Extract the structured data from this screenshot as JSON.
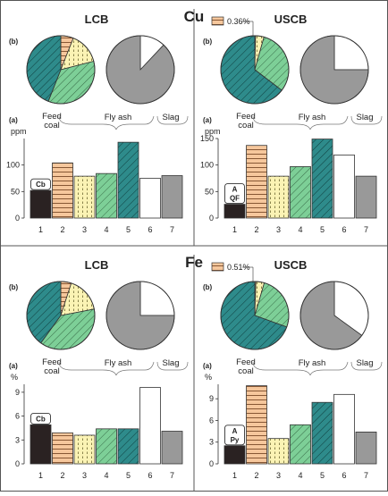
{
  "figure": {
    "panel_labels": {
      "pie": "(b)",
      "bar": "(a)"
    },
    "group_labels": {
      "feed": "Feed\ncoal",
      "fly": "Fly ash",
      "slag": "Slag"
    },
    "colors": {
      "1": "#2a2222",
      "2": "#f6c79c",
      "3": "#fbf3b4",
      "4": "#7dcf97",
      "5": "#2e8b8b",
      "6": "#ffffff",
      "7": "#999999"
    }
  },
  "chart_data": [
    {
      "id": "cu-lcb",
      "element": "Cu",
      "plant": "LCB",
      "type": "bar",
      "ylabel": "ppm",
      "ylim": [
        0,
        150
      ],
      "yticks": [
        0,
        50,
        100
      ],
      "categories": [
        "1",
        "2",
        "3",
        "4",
        "5",
        "6",
        "7"
      ],
      "values": [
        52,
        104,
        79,
        84,
        143,
        75,
        80
      ],
      "annotation": "Cb",
      "pie_fly": [
        {
          "cat": "2",
          "value": 0.06
        },
        {
          "cat": "3",
          "value": 0.15
        },
        {
          "cat": "4",
          "value": 0.35
        },
        {
          "cat": "5",
          "value": 0.44
        }
      ],
      "pie_slag": [
        {
          "cat": "6",
          "value": 0.12
        },
        {
          "cat": "7",
          "value": 0.88
        }
      ]
    },
    {
      "id": "cu-uscb",
      "element": "Cu",
      "plant": "USCB",
      "type": "bar",
      "ylabel": "ppm",
      "ylim": [
        0,
        150
      ],
      "yticks": [
        0,
        50,
        100,
        150
      ],
      "categories": [
        "1",
        "2",
        "3",
        "4",
        "5",
        "6",
        "7"
      ],
      "values": [
        26,
        137,
        79,
        97,
        149,
        119,
        79
      ],
      "annotation": "A\nQF",
      "pie_fly_legend": "0.36%",
      "pie_fly": [
        {
          "cat": "2",
          "value": 0.0036
        },
        {
          "cat": "3",
          "value": 0.04
        },
        {
          "cat": "4",
          "value": 0.31
        },
        {
          "cat": "5",
          "value": 0.6464
        }
      ],
      "pie_slag": [
        {
          "cat": "6",
          "value": 0.25
        },
        {
          "cat": "7",
          "value": 0.75
        }
      ]
    },
    {
      "id": "fe-lcb",
      "element": "Fe",
      "plant": "LCB",
      "type": "bar",
      "ylabel": "%",
      "ylim": [
        0,
        10
      ],
      "yticks": [
        0,
        3,
        6,
        9
      ],
      "categories": [
        "1",
        "2",
        "3",
        "4",
        "5",
        "6",
        "7"
      ],
      "values": [
        4.9,
        3.9,
        3.6,
        4.4,
        4.4,
        9.6,
        4.1
      ],
      "annotation": "Cb",
      "pie_fly": [
        {
          "cat": "2",
          "value": 0.05
        },
        {
          "cat": "3",
          "value": 0.17
        },
        {
          "cat": "4",
          "value": 0.38
        },
        {
          "cat": "5",
          "value": 0.4
        }
      ],
      "pie_slag": [
        {
          "cat": "6",
          "value": 0.25
        },
        {
          "cat": "7",
          "value": 0.75
        }
      ]
    },
    {
      "id": "fe-uscb",
      "element": "Fe",
      "plant": "USCB",
      "type": "bar",
      "ylabel": "%",
      "ylim": [
        0,
        11
      ],
      "yticks": [
        0,
        3,
        6,
        9
      ],
      "categories": [
        "1",
        "2",
        "3",
        "4",
        "5",
        "6",
        "7"
      ],
      "values": [
        2.5,
        10.8,
        3.5,
        5.4,
        8.5,
        9.6,
        4.4
      ],
      "annotation": "A\nPy",
      "pie_fly_legend": "0.51%",
      "pie_fly": [
        {
          "cat": "2",
          "value": 0.0051
        },
        {
          "cat": "3",
          "value": 0.04
        },
        {
          "cat": "4",
          "value": 0.26
        },
        {
          "cat": "5",
          "value": 0.6949
        }
      ],
      "pie_slag": [
        {
          "cat": "6",
          "value": 0.35
        },
        {
          "cat": "7",
          "value": 0.65
        }
      ]
    }
  ],
  "sections": [
    {
      "title": "Cu",
      "panels": [
        "cu-lcb",
        "cu-uscb"
      ]
    },
    {
      "title": "Fe",
      "panels": [
        "fe-lcb",
        "fe-uscb"
      ]
    }
  ]
}
